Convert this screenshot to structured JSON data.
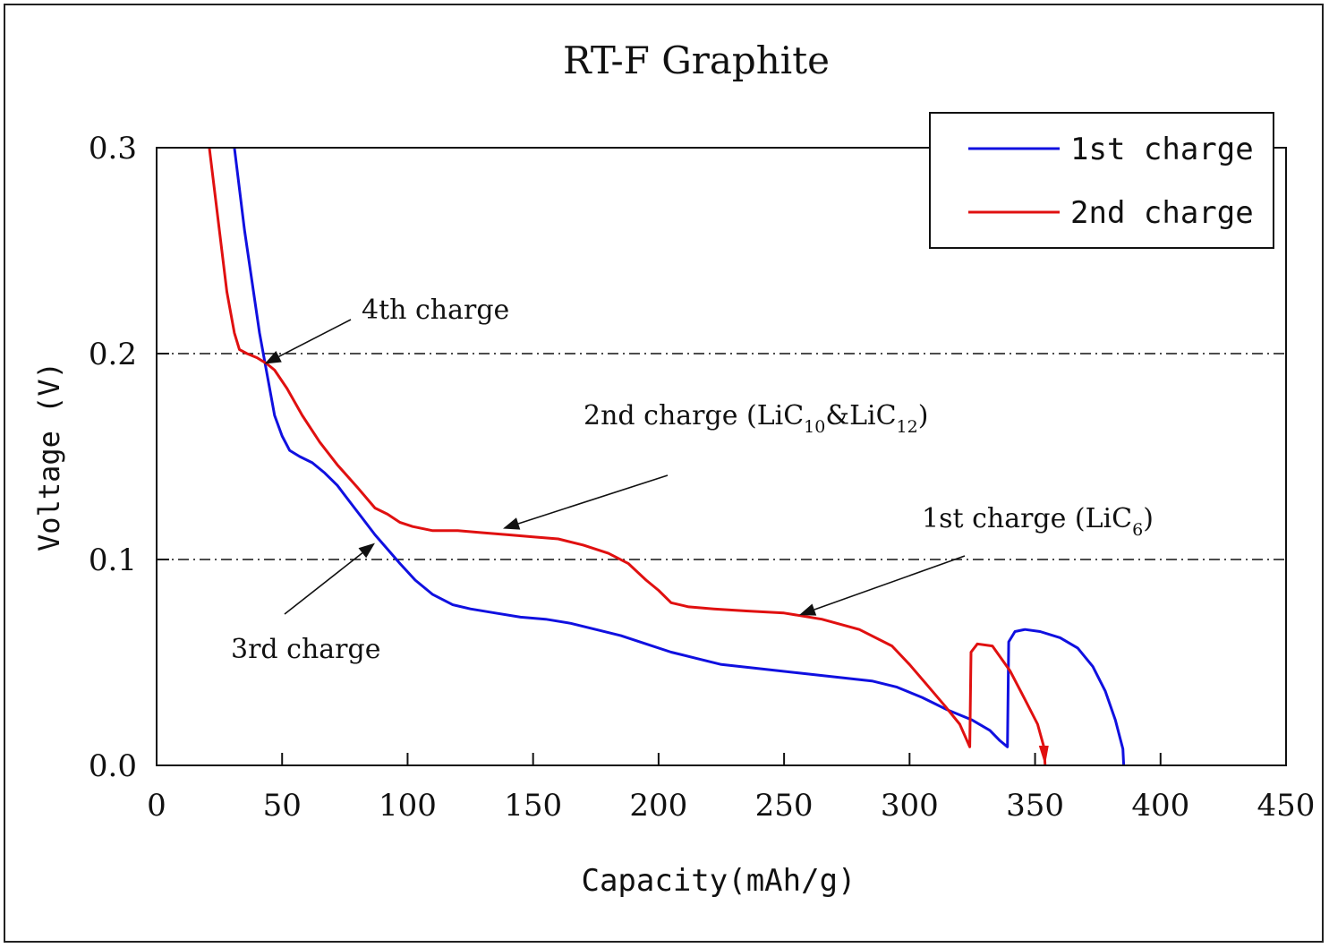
{
  "chart_data": {
    "type": "line",
    "title": "RT-F Graphite",
    "xlabel": "Capacity(mAh/g)",
    "ylabel": "Voltage (V)",
    "xlim": [
      0,
      450
    ],
    "ylim": [
      0,
      0.3
    ],
    "xticks": [
      0,
      50,
      100,
      150,
      200,
      250,
      300,
      350,
      400,
      450
    ],
    "yticks": [
      0.0,
      0.1,
      0.2,
      0.3
    ],
    "xtick_labels": [
      "0",
      "50",
      "100",
      "150",
      "200",
      "250",
      "300",
      "350",
      "400",
      "450"
    ],
    "ytick_labels": [
      "0.0",
      "0.1",
      "0.2",
      "0.3"
    ],
    "reference_lines": [
      0.1,
      0.2
    ],
    "legend_position": "top-right",
    "series": [
      {
        "name": "1st charge",
        "color": "#1010e0",
        "points": [
          [
            31,
            0.3
          ],
          [
            35,
            0.26
          ],
          [
            38,
            0.235
          ],
          [
            41,
            0.21
          ],
          [
            44,
            0.19
          ],
          [
            47,
            0.17
          ],
          [
            50,
            0.16
          ],
          [
            53,
            0.153
          ],
          [
            57,
            0.15
          ],
          [
            62,
            0.147
          ],
          [
            67,
            0.142
          ],
          [
            72,
            0.136
          ],
          [
            77,
            0.128
          ],
          [
            82,
            0.12
          ],
          [
            87,
            0.112
          ],
          [
            92,
            0.105
          ],
          [
            97,
            0.098
          ],
          [
            103,
            0.09
          ],
          [
            110,
            0.083
          ],
          [
            118,
            0.078
          ],
          [
            125,
            0.076
          ],
          [
            135,
            0.074
          ],
          [
            145,
            0.072
          ],
          [
            155,
            0.071
          ],
          [
            165,
            0.069
          ],
          [
            175,
            0.066
          ],
          [
            185,
            0.063
          ],
          [
            195,
            0.059
          ],
          [
            205,
            0.055
          ],
          [
            215,
            0.052
          ],
          [
            225,
            0.049
          ],
          [
            240,
            0.047
          ],
          [
            255,
            0.045
          ],
          [
            270,
            0.043
          ],
          [
            285,
            0.041
          ],
          [
            295,
            0.038
          ],
          [
            305,
            0.033
          ],
          [
            315,
            0.027
          ],
          [
            325,
            0.022
          ],
          [
            332,
            0.017
          ],
          [
            336,
            0.012
          ],
          [
            339,
            0.009
          ],
          [
            339.5,
            0.06
          ],
          [
            342,
            0.065
          ],
          [
            346,
            0.066
          ],
          [
            352,
            0.065
          ],
          [
            360,
            0.062
          ],
          [
            367,
            0.057
          ],
          [
            373,
            0.048
          ],
          [
            378,
            0.036
          ],
          [
            382,
            0.022
          ],
          [
            385,
            0.008
          ],
          [
            385.3,
            0.0
          ]
        ]
      },
      {
        "name": "2nd charge",
        "color": "#e01010",
        "points": [
          [
            21,
            0.3
          ],
          [
            25,
            0.26
          ],
          [
            28,
            0.23
          ],
          [
            31,
            0.21
          ],
          [
            33,
            0.202
          ],
          [
            36,
            0.2
          ],
          [
            40,
            0.198
          ],
          [
            44,
            0.195
          ],
          [
            47,
            0.192
          ],
          [
            52,
            0.183
          ],
          [
            58,
            0.17
          ],
          [
            65,
            0.157
          ],
          [
            72,
            0.146
          ],
          [
            80,
            0.135
          ],
          [
            87,
            0.125
          ],
          [
            92,
            0.122
          ],
          [
            97,
            0.118
          ],
          [
            102,
            0.116
          ],
          [
            110,
            0.114
          ],
          [
            120,
            0.114
          ],
          [
            130,
            0.113
          ],
          [
            140,
            0.112
          ],
          [
            150,
            0.111
          ],
          [
            160,
            0.11
          ],
          [
            170,
            0.107
          ],
          [
            180,
            0.103
          ],
          [
            188,
            0.098
          ],
          [
            195,
            0.09
          ],
          [
            200,
            0.085
          ],
          [
            205,
            0.079
          ],
          [
            212,
            0.077
          ],
          [
            222,
            0.076
          ],
          [
            235,
            0.075
          ],
          [
            250,
            0.074
          ],
          [
            265,
            0.071
          ],
          [
            280,
            0.066
          ],
          [
            293,
            0.058
          ],
          [
            300,
            0.049
          ],
          [
            307,
            0.039
          ],
          [
            314,
            0.029
          ],
          [
            320,
            0.02
          ],
          [
            324,
            0.009
          ],
          [
            324.5,
            0.055
          ],
          [
            327,
            0.059
          ],
          [
            333,
            0.058
          ],
          [
            340,
            0.046
          ],
          [
            346,
            0.032
          ],
          [
            351,
            0.02
          ],
          [
            353.5,
            0.009
          ],
          [
            354,
            0.0
          ]
        ]
      }
    ],
    "annotations": [
      {
        "text": "4th charge",
        "arrow_to": [
          43,
          0.195
        ]
      },
      {
        "text": "3rd charge",
        "arrow_to": [
          87,
          0.108
        ]
      },
      {
        "text": "2nd charge (LiC10&LiC12)",
        "arrow_to": [
          138,
          0.115
        ]
      },
      {
        "text": "1st charge (LiC6)",
        "arrow_to": [
          256,
          0.073
        ]
      }
    ]
  },
  "texts": {
    "ann_4th": "4th charge",
    "ann_3rd": "3rd charge",
    "ann_2nd_main": "2nd charge (LiC",
    "ann_2nd_sub1": "10",
    "ann_2nd_amp": "&LiC",
    "ann_2nd_sub2": "12",
    "ann_2nd_close": ")",
    "ann_1st_main": "1st charge (LiC",
    "ann_1st_sub": "6",
    "ann_1st_close": ")"
  }
}
